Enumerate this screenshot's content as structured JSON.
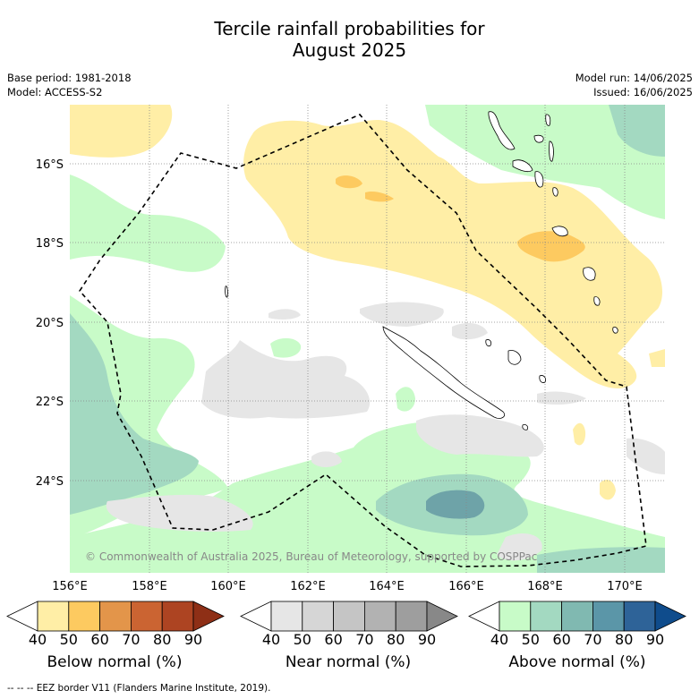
{
  "header": {
    "title_line1": "Tercile rainfall probabilities for",
    "title_line2": "August 2025",
    "base_period": "Base period: 1981-2018",
    "model": "Model: ACCESS-S2",
    "model_run": "Model run: 14/06/2025",
    "issued": "Issued: 16/06/2025"
  },
  "map": {
    "lon_labels": [
      "156°E",
      "158°E",
      "160°E",
      "162°E",
      "164°E",
      "166°E",
      "168°E",
      "170°E"
    ],
    "lat_labels": [
      "16°S",
      "18°S",
      "20°S",
      "22°S",
      "24°S"
    ],
    "copyright": "© Commonwealth of Australia 2025, Bureau of Meteorology, supported by COSPPac"
  },
  "legend": {
    "ticks": [
      "40",
      "50",
      "60",
      "70",
      "80",
      "90"
    ],
    "below": {
      "title": "Below normal (%)",
      "colors": [
        "#ffffff",
        "#ffeea6",
        "#fdca60",
        "#e3954a",
        "#cb6432",
        "#ad4422",
        "#8e2f16"
      ]
    },
    "near": {
      "title": "Near normal (%)",
      "colors": [
        "#ffffff",
        "#e6e6e6",
        "#d6d6d6",
        "#c5c5c5",
        "#b2b2b2",
        "#9e9e9e",
        "#888888"
      ]
    },
    "above": {
      "title": "Above normal (%)",
      "colors": [
        "#ffffff",
        "#c8fbc8",
        "#a3d9c1",
        "#80b9b1",
        "#5b96a8",
        "#2e6398",
        "#0f4c8c"
      ]
    }
  },
  "footer": {
    "eez_note": "--  --  -- EEZ border V11 (Flanders Marine Institute, 2019)."
  }
}
